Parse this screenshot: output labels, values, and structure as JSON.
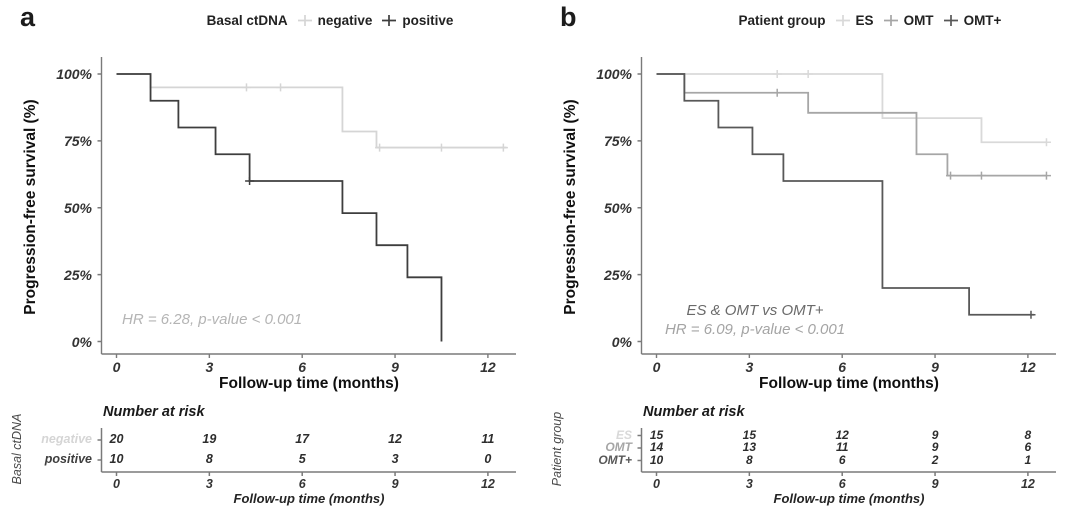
{
  "chart_data": [
    {
      "type": "line",
      "subtype": "kaplan-meier-step",
      "letter": "a",
      "legend_title": "Basal ctDNA",
      "legend_position": "top",
      "ylabel": "Progression-free survival (%)",
      "xlabel": "Follow-up time (months)",
      "x_ticks": [
        "0",
        "3",
        "6",
        "9",
        "12"
      ],
      "x_tick_months": [
        0,
        3,
        6,
        9,
        12
      ],
      "y_ticks": [
        "100%",
        "75%",
        "50%",
        "25%",
        "0%"
      ],
      "y_tick_pcts": [
        100,
        75,
        50,
        25,
        0
      ],
      "xlim": [
        0,
        12.7
      ],
      "ylim": [
        0,
        100
      ],
      "grid": false,
      "annotations": {
        "hr": "HR = 6.28, p-value < 0.001"
      },
      "risk_table_title": "Number at risk",
      "group_axis_label": "Basal ctDNA",
      "risk_xlabel": "Follow-up time (months)",
      "series": [
        {
          "name": "negative",
          "color": "#d5d5d5",
          "steps": [
            [
              0,
              100
            ],
            [
              1.1,
              95
            ],
            [
              7.3,
              78.5
            ],
            [
              8.4,
              72.5
            ]
          ],
          "end_month": 12.6,
          "censor_marks": [
            [
              4.2,
              95
            ],
            [
              5.3,
              95
            ],
            [
              8.5,
              72.5
            ],
            [
              10.5,
              72.5
            ],
            [
              12.5,
              72.5
            ]
          ],
          "at_risk": [
            "20",
            "19",
            "17",
            "12",
            "11"
          ]
        },
        {
          "name": "positive",
          "color": "#3e3e3e",
          "steps": [
            [
              0,
              100
            ],
            [
              1.1,
              90
            ],
            [
              2,
              80
            ],
            [
              3.2,
              70
            ],
            [
              4.3,
              60
            ],
            [
              7.3,
              48
            ],
            [
              8.4,
              36
            ],
            [
              9.4,
              24
            ],
            [
              10.5,
              0
            ]
          ],
          "end_month": 10.5,
          "censor_marks": [
            [
              4.3,
              60
            ]
          ],
          "at_risk": [
            "10",
            "8",
            "5",
            "3",
            "0"
          ]
        }
      ]
    },
    {
      "type": "line",
      "subtype": "kaplan-meier-step",
      "letter": "b",
      "legend_title": "Patient group",
      "legend_position": "top",
      "ylabel": "Progression-free survival (%)",
      "xlabel": "Follow-up time (months)",
      "x_ticks": [
        "0",
        "3",
        "6",
        "9",
        "12"
      ],
      "x_tick_months": [
        0,
        3,
        6,
        9,
        12
      ],
      "y_ticks": [
        "100%",
        "75%",
        "50%",
        "25%",
        "0%"
      ],
      "y_tick_pcts": [
        100,
        75,
        50,
        25,
        0
      ],
      "xlim": [
        0,
        12.7
      ],
      "ylim": [
        0,
        100
      ],
      "grid": false,
      "annotations": {
        "comparison": "ES & OMT vs OMT+",
        "hr": "HR = 6.09, p-value < 0.001"
      },
      "risk_table_title": "Number at risk",
      "group_axis_label": "Patient group",
      "risk_xlabel": "Follow-up time (months)",
      "series": [
        {
          "name": "ES",
          "color": "#d9d9d9",
          "steps": [
            [
              0,
              100
            ],
            [
              7.3,
              83.5
            ],
            [
              10.5,
              74.5
            ]
          ],
          "end_month": 12.6,
          "censor_marks": [
            [
              3.9,
              100
            ],
            [
              4.9,
              100
            ],
            [
              12.6,
              74.5
            ]
          ],
          "at_risk": [
            "15",
            "15",
            "12",
            "9",
            "8"
          ]
        },
        {
          "name": "OMT",
          "color": "#a6a6a6",
          "steps": [
            [
              0,
              100
            ],
            [
              0.9,
              93
            ],
            [
              4.9,
              85.5
            ],
            [
              8.4,
              70
            ],
            [
              9.4,
              62
            ]
          ],
          "end_month": 12.6,
          "censor_marks": [
            [
              3.9,
              93
            ],
            [
              9.5,
              62
            ],
            [
              10.5,
              62
            ],
            [
              12.6,
              62
            ]
          ],
          "at_risk": [
            "14",
            "13",
            "11",
            "9",
            "6"
          ]
        },
        {
          "name": "OMT+",
          "color": "#585858",
          "steps": [
            [
              0,
              100
            ],
            [
              0.9,
              90
            ],
            [
              2,
              80
            ],
            [
              3.1,
              70
            ],
            [
              4.1,
              60
            ],
            [
              7.3,
              20
            ],
            [
              10.1,
              10
            ]
          ],
          "end_month": 12.2,
          "censor_marks": [
            [
              12.1,
              10
            ]
          ],
          "at_risk": [
            "10",
            "8",
            "6",
            "2",
            "1"
          ]
        }
      ]
    }
  ]
}
